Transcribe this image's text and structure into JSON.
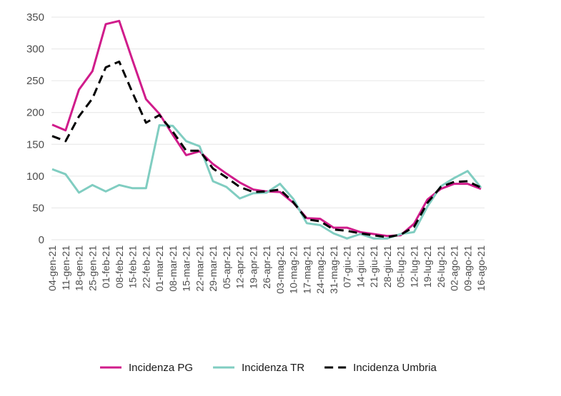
{
  "chart_data": {
    "type": "line",
    "title": "",
    "xlabel": "",
    "ylabel": "",
    "ylim": [
      0,
      350
    ],
    "yticks": [
      0,
      50,
      100,
      150,
      200,
      250,
      300,
      350
    ],
    "grid": "horizontal",
    "legend": "bottom",
    "x": [
      "04-gen-21",
      "11-gen-21",
      "18-gen-21",
      "25-gen-21",
      "01-feb-21",
      "08-feb-21",
      "15-feb-21",
      "22-feb-21",
      "01-mar-21",
      "08-mar-21",
      "15-mar-21",
      "22-mar-21",
      "29-mar-21",
      "05-apr-21",
      "12-apr-21",
      "19-apr-21",
      "26-apr-21",
      "03-mag-21",
      "10-mag-21",
      "17-mag-21",
      "24-mag-21",
      "31-mag-21",
      "07-giu-21",
      "14-giu-21",
      "21-giu-21",
      "28-giu-21",
      "05-lug-21",
      "12-lug-21",
      "19-lug-21",
      "26-lug-21",
      "02-ago-21",
      "09-ago-21",
      "16-ago-21"
    ],
    "series": [
      {
        "name": "Incidenza PG",
        "color": "#d01c8b",
        "dash": "solid",
        "values": [
          181,
          172,
          236,
          265,
          339,
          344,
          282,
          221,
          198,
          165,
          133,
          139,
          119,
          104,
          90,
          79,
          76,
          75,
          58,
          34,
          33,
          19,
          19,
          12,
          9,
          6,
          7,
          25,
          63,
          80,
          88,
          88,
          80
        ]
      },
      {
        "name": "Incidenza TR",
        "color": "#80cdc1",
        "dash": "solid",
        "values": [
          111,
          103,
          74,
          86,
          76,
          86,
          81,
          81,
          180,
          179,
          155,
          147,
          92,
          83,
          65,
          73,
          74,
          88,
          64,
          26,
          23,
          10,
          2,
          9,
          2,
          2,
          9,
          12,
          52,
          84,
          97,
          108,
          82
        ]
      },
      {
        "name": "Incidenza Umbria",
        "color": "#000000",
        "dash": "dashed",
        "values": [
          163,
          155,
          194,
          222,
          271,
          280,
          231,
          184,
          196,
          170,
          140,
          140,
          112,
          98,
          83,
          75,
          76,
          79,
          59,
          32,
          29,
          16,
          14,
          10,
          7,
          4,
          8,
          20,
          58,
          83,
          91,
          92,
          82
        ]
      }
    ]
  }
}
